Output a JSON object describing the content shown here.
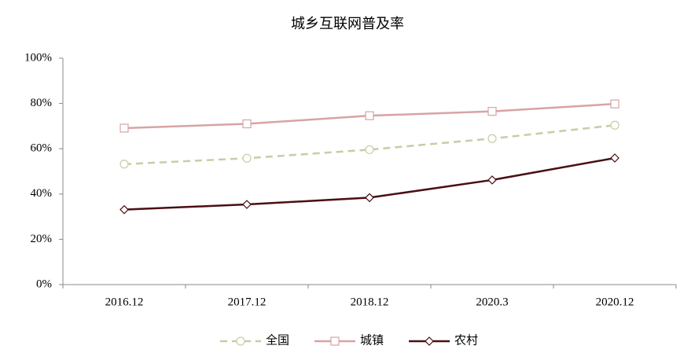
{
  "chart_data": {
    "type": "line",
    "title": "城乡互联网普及率",
    "categories": [
      "2016.12",
      "2017.12",
      "2018.12",
      "2020.3",
      "2020.12"
    ],
    "series": [
      {
        "name": "全国",
        "color": "#c3cfa5",
        "marker": "circle",
        "dashed": true,
        "values": [
          53.2,
          55.8,
          59.6,
          64.5,
          70.4
        ]
      },
      {
        "name": "城镇",
        "color": "#d9a3a3",
        "marker": "square",
        "dashed": false,
        "values": [
          69.1,
          71.0,
          74.6,
          76.5,
          79.8
        ]
      },
      {
        "name": "农村",
        "color": "#4a0f12",
        "marker": "diamond",
        "dashed": false,
        "values": [
          33.1,
          35.4,
          38.4,
          46.2,
          55.9
        ]
      }
    ],
    "ylim": [
      0,
      100
    ],
    "yticks": [
      {
        "value": 0,
        "label": "0%"
      },
      {
        "value": 20,
        "label": "20%"
      },
      {
        "value": 40,
        "label": "40%"
      },
      {
        "value": 60,
        "label": "60%"
      },
      {
        "value": 80,
        "label": "80%"
      },
      {
        "value": 100,
        "label": "100%"
      }
    ],
    "grid": false,
    "legend": "bottom"
  }
}
